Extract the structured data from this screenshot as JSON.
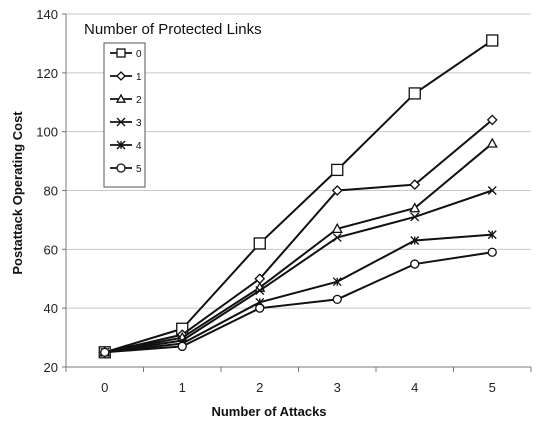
{
  "chart_data": {
    "type": "line",
    "title": "",
    "xlabel": "Number of Attacks",
    "ylabel": "Postattack Operating Cost",
    "x": [
      0,
      1,
      2,
      3,
      4,
      5
    ],
    "xlim": [
      -0.5,
      5.5
    ],
    "ylim": [
      20,
      140
    ],
    "yticks": [
      20,
      40,
      60,
      80,
      100,
      120,
      140
    ],
    "grid": "horizontal",
    "legend": {
      "title": "Number of Protected Links",
      "placement": "top-left"
    },
    "series": [
      {
        "name": "0",
        "marker": "square",
        "values": [
          25,
          33,
          62,
          87,
          113,
          131
        ]
      },
      {
        "name": "1",
        "marker": "diamond",
        "values": [
          25,
          31,
          50,
          80,
          82,
          104
        ]
      },
      {
        "name": "2",
        "marker": "triangle",
        "values": [
          25,
          30,
          47,
          67,
          74,
          96
        ]
      },
      {
        "name": "3",
        "marker": "x",
        "values": [
          25,
          29,
          46,
          64,
          71,
          80
        ]
      },
      {
        "name": "4",
        "marker": "star",
        "values": [
          25,
          28,
          42,
          49,
          63,
          65
        ]
      },
      {
        "name": "5",
        "marker": "circle",
        "values": [
          25,
          27,
          40,
          43,
          55,
          59
        ]
      }
    ],
    "colors": {
      "line": "#111111",
      "grid": "#c8c8c8",
      "axis": "#777777"
    }
  }
}
